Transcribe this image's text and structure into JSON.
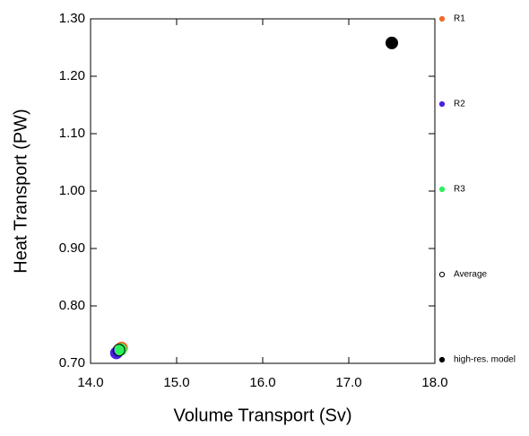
{
  "chart_data": {
    "type": "scatter",
    "x_label": "Volume Transport (Sv)",
    "y_label": "Heat Transport (PW)",
    "xlim": [
      14,
      18
    ],
    "xticks": [
      {
        "value": 14,
        "label": "14.0"
      },
      {
        "value": 15,
        "label": "15.0"
      },
      {
        "value": 16,
        "label": "16.0"
      },
      {
        "value": 17,
        "label": "17.0"
      },
      {
        "value": 18,
        "label": "18.0"
      }
    ],
    "ylim": [
      0.7,
      1.3
    ],
    "yticks": [
      {
        "value": 0.7,
        "label": "0.70"
      },
      {
        "value": 0.8,
        "label": "0.80"
      },
      {
        "value": 0.9,
        "label": "0.90"
      },
      {
        "value": 1.0,
        "label": "1.00"
      },
      {
        "value": 1.1,
        "label": "1.10"
      },
      {
        "value": 1.2,
        "label": "1.20"
      },
      {
        "value": 1.3,
        "label": "1.30"
      }
    ],
    "series": [
      {
        "name": "R1",
        "color": "#f06a28",
        "fill": "solid",
        "x": [
          14.36
        ],
        "values": [
          0.727
        ]
      },
      {
        "name": "R2",
        "color": "#4b1ee6",
        "fill": "solid",
        "x": [
          14.3
        ],
        "values": [
          0.718
        ]
      },
      {
        "name": "R3",
        "color": "#2ef05a",
        "fill": "solid",
        "x": [
          14.35
        ],
        "values": [
          0.724
        ]
      },
      {
        "name": "Average",
        "color": "#000000",
        "fill": "open",
        "x": [
          14.33
        ],
        "values": [
          0.723
        ]
      },
      {
        "name": "high-res. model",
        "color": "#000000",
        "fill": "solid",
        "x": [
          17.5
        ],
        "values": [
          1.258
        ]
      }
    ]
  }
}
